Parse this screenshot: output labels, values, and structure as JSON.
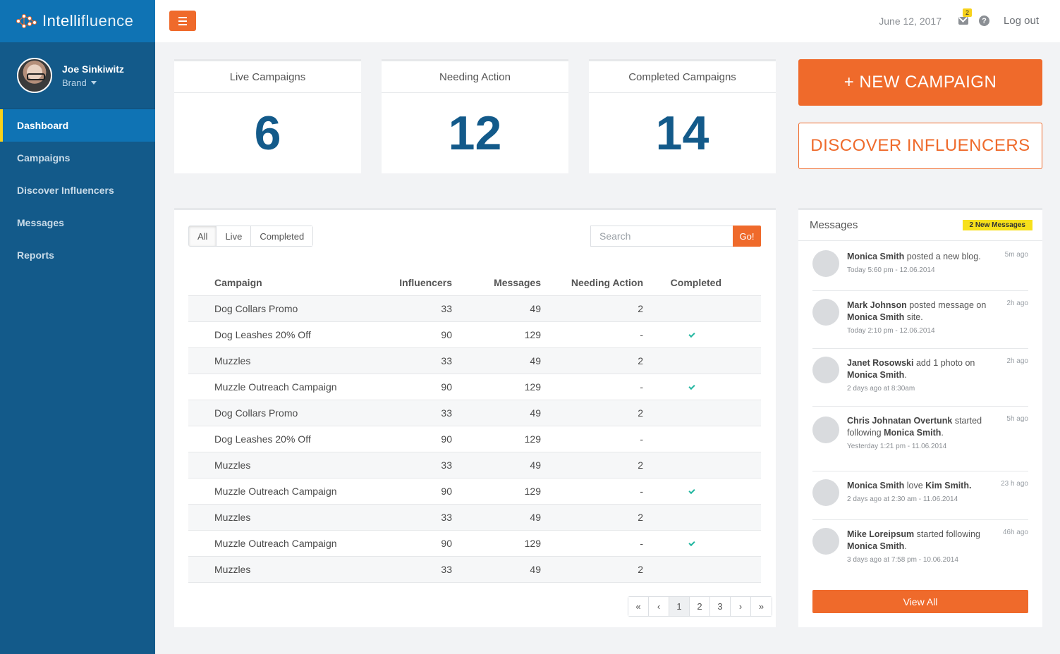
{
  "brand": {
    "name_part1": "Intelli",
    "name_part2": "fluence"
  },
  "profile": {
    "name": "Joe Sinkiwitz",
    "role": "Brand"
  },
  "nav": [
    {
      "label": "Dashboard",
      "active": true
    },
    {
      "label": "Campaigns"
    },
    {
      "label": "Discover Influencers"
    },
    {
      "label": "Messages"
    },
    {
      "label": "Reports"
    }
  ],
  "topbar": {
    "date": "June 12, 2017",
    "mail_count": "2",
    "logout": "Log out"
  },
  "stats": [
    {
      "label": "Live Campaigns",
      "value": "6"
    },
    {
      "label": "Needing Action",
      "value": "12"
    },
    {
      "label": "Completed Campaigns",
      "value": "14"
    }
  ],
  "actions": {
    "new_campaign": "+ NEW CAMPAIGN",
    "discover": "DISCOVER INFLUENCERS"
  },
  "filters": [
    "All",
    "Live",
    "Completed"
  ],
  "search": {
    "placeholder": "Search",
    "button": "Go!"
  },
  "table": {
    "headers": [
      "Campaign",
      "Influencers",
      "Messages",
      "Needing Action",
      "Completed"
    ],
    "rows": [
      {
        "campaign": "Dog Collars Promo",
        "influencers": "33",
        "messages": "49",
        "needing": "2",
        "completed": false
      },
      {
        "campaign": "Dog Leashes 20% Off",
        "influencers": "90",
        "messages": "129",
        "needing": "-",
        "completed": true
      },
      {
        "campaign": "Muzzles",
        "influencers": "33",
        "messages": "49",
        "needing": "2",
        "completed": false
      },
      {
        "campaign": "Muzzle Outreach Campaign",
        "influencers": "90",
        "messages": "129",
        "needing": "-",
        "completed": true
      },
      {
        "campaign": "Dog Collars Promo",
        "influencers": "33",
        "messages": "49",
        "needing": "2",
        "completed": false
      },
      {
        "campaign": "Dog Leashes 20% Off",
        "influencers": "90",
        "messages": "129",
        "needing": "-",
        "completed": false
      },
      {
        "campaign": "Muzzles",
        "influencers": "33",
        "messages": "49",
        "needing": "2",
        "completed": false
      },
      {
        "campaign": "Muzzle Outreach Campaign",
        "influencers": "90",
        "messages": "129",
        "needing": "-",
        "completed": true
      },
      {
        "campaign": "Muzzles",
        "influencers": "33",
        "messages": "49",
        "needing": "2",
        "completed": false
      },
      {
        "campaign": "Muzzle Outreach Campaign",
        "influencers": "90",
        "messages": "129",
        "needing": "-",
        "completed": true
      },
      {
        "campaign": "Muzzles",
        "influencers": "33",
        "messages": "49",
        "needing": "2",
        "completed": false
      }
    ]
  },
  "pagination": {
    "first": "«",
    "prev": "‹",
    "pages": [
      "1",
      "2",
      "3"
    ],
    "next": "›",
    "last": "»",
    "current": "1"
  },
  "messages": {
    "title": "Messages",
    "badge": "2 New Messages",
    "view_all": "View All",
    "items": [
      {
        "parts": [
          [
            "b",
            "Monica Smith"
          ],
          [
            "t",
            " posted a new blog."
          ]
        ],
        "time": "Today 5:60 pm - 12.06.2014",
        "ago": "5m ago"
      },
      {
        "parts": [
          [
            "b",
            "Mark Johnson"
          ],
          [
            "t",
            " posted message on "
          ],
          [
            "b",
            "Monica Smith"
          ],
          [
            "t",
            " site."
          ]
        ],
        "time": "Today 2:10 pm - 12.06.2014",
        "ago": "2h ago"
      },
      {
        "parts": [
          [
            "b",
            "Janet Rosowski"
          ],
          [
            "t",
            " add 1 photo on "
          ],
          [
            "b",
            "Monica Smith"
          ],
          [
            "t",
            "."
          ]
        ],
        "time": "2 days ago at 8:30am",
        "ago": "2h ago"
      },
      {
        "parts": [
          [
            "b",
            "Chris Johnatan Overtunk"
          ],
          [
            "t",
            " started following "
          ],
          [
            "b",
            "Monica Smith"
          ],
          [
            "t",
            "."
          ]
        ],
        "time": "Yesterday 1:21 pm - 11.06.2014",
        "ago": "5h ago"
      },
      {
        "parts": [
          [
            "b",
            "Monica Smith"
          ],
          [
            "t",
            " love "
          ],
          [
            "b",
            "Kim Smith."
          ]
        ],
        "time": "2 days ago at 2:30 am - 11.06.2014",
        "ago": "23 h ago"
      },
      {
        "parts": [
          [
            "b",
            "Mike Loreipsum"
          ],
          [
            "t",
            " started following "
          ],
          [
            "b",
            "Monica Smith"
          ],
          [
            "t",
            "."
          ]
        ],
        "time": "3 days ago at 7:58 pm - 10.06.2014",
        "ago": "46h ago"
      }
    ]
  },
  "colors": {
    "sidebar": "#135a8a",
    "brand_bar": "#0f73b4",
    "accent": "#ef6a2b",
    "stat": "#135a8a",
    "highlight": "#f7d21b",
    "check": "#22b6a0"
  }
}
